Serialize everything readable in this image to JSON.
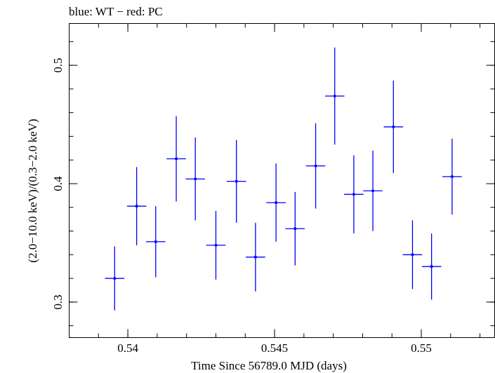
{
  "chart_data": {
    "type": "scatter",
    "title": "blue: WT − red: PC",
    "xlabel": "Time Since 56789.0 MJD (days)",
    "ylabel": "(2.0−10.0 keV)/(0.3−2.0 keV)",
    "xlim": [
      0.538,
      0.5525
    ],
    "ylim": [
      0.27,
      0.5353
    ],
    "x_ticks": [
      0.54,
      0.545,
      0.55
    ],
    "x_tick_labels": [
      "0.54",
      "0.545",
      "0.55"
    ],
    "y_ticks": [
      0.3,
      0.4,
      0.5
    ],
    "y_tick_labels": [
      "0.3",
      "0.4",
      "0.5"
    ],
    "x_minor_step": 0.001,
    "y_minor_step": 0.02,
    "grid": false,
    "series": [
      {
        "color": "#0000ff",
        "points": [
          {
            "x": 0.53955,
            "y": 0.32,
            "xerr": 0.00033,
            "yerr_lo": 0.027,
            "yerr_hi": 0.027
          },
          {
            "x": 0.5403,
            "y": 0.381,
            "xerr": 0.00033,
            "yerr_lo": 0.033,
            "yerr_hi": 0.033
          },
          {
            "x": 0.54095,
            "y": 0.351,
            "xerr": 0.00033,
            "yerr_lo": 0.03,
            "yerr_hi": 0.03
          },
          {
            "x": 0.54165,
            "y": 0.421,
            "xerr": 0.00033,
            "yerr_lo": 0.036,
            "yerr_hi": 0.036
          },
          {
            "x": 0.5423,
            "y": 0.404,
            "xerr": 0.00033,
            "yerr_lo": 0.035,
            "yerr_hi": 0.035
          },
          {
            "x": 0.543,
            "y": 0.348,
            "xerr": 0.00033,
            "yerr_lo": 0.029,
            "yerr_hi": 0.029
          },
          {
            "x": 0.5437,
            "y": 0.402,
            "xerr": 0.00033,
            "yerr_lo": 0.035,
            "yerr_hi": 0.035
          },
          {
            "x": 0.54435,
            "y": 0.338,
            "xerr": 0.00033,
            "yerr_lo": 0.029,
            "yerr_hi": 0.029
          },
          {
            "x": 0.54505,
            "y": 0.384,
            "xerr": 0.00033,
            "yerr_lo": 0.033,
            "yerr_hi": 0.033
          },
          {
            "x": 0.5457,
            "y": 0.362,
            "xerr": 0.00033,
            "yerr_lo": 0.031,
            "yerr_hi": 0.031
          },
          {
            "x": 0.5464,
            "y": 0.415,
            "xerr": 0.00033,
            "yerr_lo": 0.036,
            "yerr_hi": 0.036
          },
          {
            "x": 0.54705,
            "y": 0.474,
            "xerr": 0.00033,
            "yerr_lo": 0.041,
            "yerr_hi": 0.041
          },
          {
            "x": 0.5477,
            "y": 0.391,
            "xerr": 0.00033,
            "yerr_lo": 0.033,
            "yerr_hi": 0.033
          },
          {
            "x": 0.54835,
            "y": 0.394,
            "xerr": 0.00033,
            "yerr_lo": 0.034,
            "yerr_hi": 0.034
          },
          {
            "x": 0.54905,
            "y": 0.448,
            "xerr": 0.00033,
            "yerr_lo": 0.039,
            "yerr_hi": 0.039
          },
          {
            "x": 0.5497,
            "y": 0.34,
            "xerr": 0.00033,
            "yerr_lo": 0.029,
            "yerr_hi": 0.029
          },
          {
            "x": 0.55035,
            "y": 0.33,
            "xerr": 0.00033,
            "yerr_lo": 0.028,
            "yerr_hi": 0.028
          },
          {
            "x": 0.55105,
            "y": 0.406,
            "xerr": 0.00033,
            "yerr_lo": 0.032,
            "yerr_hi": 0.032
          }
        ]
      }
    ]
  }
}
